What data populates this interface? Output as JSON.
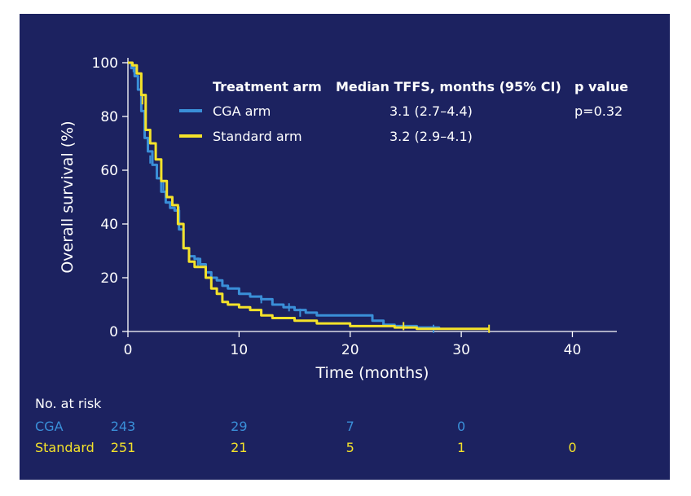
{
  "chart_data": {
    "type": "line",
    "xlabel": "Time (months)",
    "ylabel": "Overall survival (%)",
    "xlim": [
      0,
      44
    ],
    "ylim": [
      0,
      100
    ],
    "xticks": [
      0,
      10,
      20,
      30,
      40
    ],
    "yticks": [
      0,
      20,
      40,
      60,
      80,
      100
    ],
    "grid": false,
    "legend": {
      "placement": "top-right",
      "header": [
        "Treatment arm",
        "Median TFFS, months (95% CI)",
        "p value"
      ],
      "entries": [
        {
          "name": "CGA arm",
          "median": "3.1 (2.7–4.4)",
          "p": "p=0.32"
        },
        {
          "name": "Standard arm",
          "median": "3.2 (2.9–4.1)",
          "p": ""
        }
      ]
    },
    "series": [
      {
        "name": "CGA arm",
        "color": "#3a8fd8",
        "points": [
          [
            0,
            100
          ],
          [
            0.3,
            98
          ],
          [
            0.6,
            95
          ],
          [
            0.9,
            90
          ],
          [
            1.2,
            82
          ],
          [
            1.5,
            72
          ],
          [
            1.8,
            67
          ],
          [
            2.2,
            62
          ],
          [
            2.6,
            57
          ],
          [
            3,
            52
          ],
          [
            3.4,
            48
          ],
          [
            3.8,
            46
          ],
          [
            4.2,
            45
          ],
          [
            4.6,
            38
          ],
          [
            5,
            31
          ],
          [
            5.5,
            28
          ],
          [
            6,
            27
          ],
          [
            6.5,
            25
          ],
          [
            7,
            22
          ],
          [
            7.5,
            20
          ],
          [
            8,
            19
          ],
          [
            8.5,
            17
          ],
          [
            9,
            16
          ],
          [
            10,
            14
          ],
          [
            11,
            13
          ],
          [
            12,
            12
          ],
          [
            13,
            10
          ],
          [
            14,
            9
          ],
          [
            15,
            8
          ],
          [
            16,
            7
          ],
          [
            17,
            6
          ],
          [
            20,
            6
          ],
          [
            22,
            4
          ],
          [
            23,
            2.5
          ],
          [
            24,
            2
          ],
          [
            26,
            1.5
          ],
          [
            28,
            1
          ]
        ],
        "censor_marks": [
          [
            0.5,
            98
          ],
          [
            1.3,
            87
          ],
          [
            2,
            64
          ],
          [
            3.2,
            54
          ],
          [
            4.6,
            45
          ],
          [
            5,
            35
          ],
          [
            6.3,
            26
          ],
          [
            12,
            12
          ],
          [
            14.5,
            9
          ],
          [
            15.5,
            7
          ],
          [
            27.5,
            1
          ]
        ]
      },
      {
        "name": "Standard arm",
        "color": "#f4e22a",
        "points": [
          [
            0,
            100
          ],
          [
            0.4,
            99
          ],
          [
            0.8,
            96
          ],
          [
            1.2,
            88
          ],
          [
            1.6,
            75
          ],
          [
            2,
            70
          ],
          [
            2.5,
            64
          ],
          [
            3,
            56
          ],
          [
            3.5,
            50
          ],
          [
            4,
            47
          ],
          [
            4.5,
            40
          ],
          [
            5,
            31
          ],
          [
            5.5,
            26
          ],
          [
            6,
            24
          ],
          [
            7,
            20
          ],
          [
            7.5,
            16
          ],
          [
            8,
            14
          ],
          [
            8.5,
            11
          ],
          [
            9,
            10
          ],
          [
            10,
            9
          ],
          [
            11,
            8
          ],
          [
            12,
            6
          ],
          [
            13,
            5
          ],
          [
            15,
            4
          ],
          [
            17,
            3
          ],
          [
            20,
            2
          ],
          [
            24,
            1.5
          ],
          [
            26,
            1
          ],
          [
            32.5,
            1
          ]
        ],
        "censor_marks": [
          [
            1.3,
            86
          ],
          [
            24.8,
            2
          ],
          [
            32.5,
            1
          ]
        ]
      }
    ],
    "risk_table": {
      "title": "No. at risk",
      "times": [
        0,
        10,
        20,
        30,
        40
      ],
      "rows": [
        {
          "label": "CGA",
          "color": "#3a8fd8",
          "values": [
            "243",
            "29",
            "7",
            "0",
            ""
          ]
        },
        {
          "label": "Standard",
          "color": "#f4e22a",
          "values": [
            "251",
            "21",
            "5",
            "1",
            "0"
          ]
        }
      ]
    }
  }
}
